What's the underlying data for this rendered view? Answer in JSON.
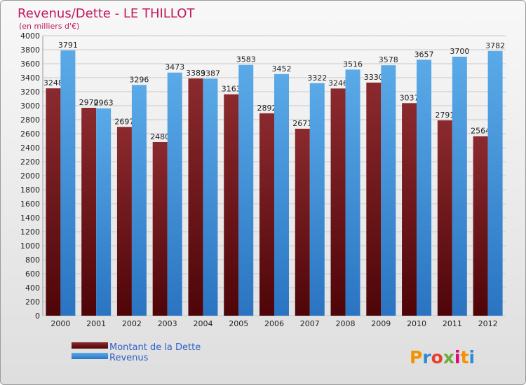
{
  "chart_data": {
    "type": "bar",
    "title": "Revenus/Dette - LE THILLOT",
    "subtitle": "(en milliers d'€)",
    "categories": [
      "2000",
      "2001",
      "2002",
      "2003",
      "2004",
      "2005",
      "2006",
      "2007",
      "2008",
      "2009",
      "2010",
      "2011",
      "2012"
    ],
    "series": [
      {
        "name": "Montant de la Dette",
        "color": "#7a1f22",
        "values": [
          3248,
          2970,
          2697,
          2480,
          3389,
          3163,
          2892,
          2671,
          3246,
          3330,
          3037,
          2791,
          2564
        ]
      },
      {
        "name": "Revenus",
        "color": "#4a9fe0",
        "values": [
          3791,
          2963,
          3296,
          3473,
          3387,
          3583,
          3452,
          3322,
          3516,
          3578,
          3657,
          3700,
          3782
        ]
      }
    ],
    "ylim": [
      0,
      4000
    ],
    "ytick_step": 200,
    "grid": true,
    "xlabel": "",
    "ylabel": ""
  },
  "logo_text": "Proxiti"
}
